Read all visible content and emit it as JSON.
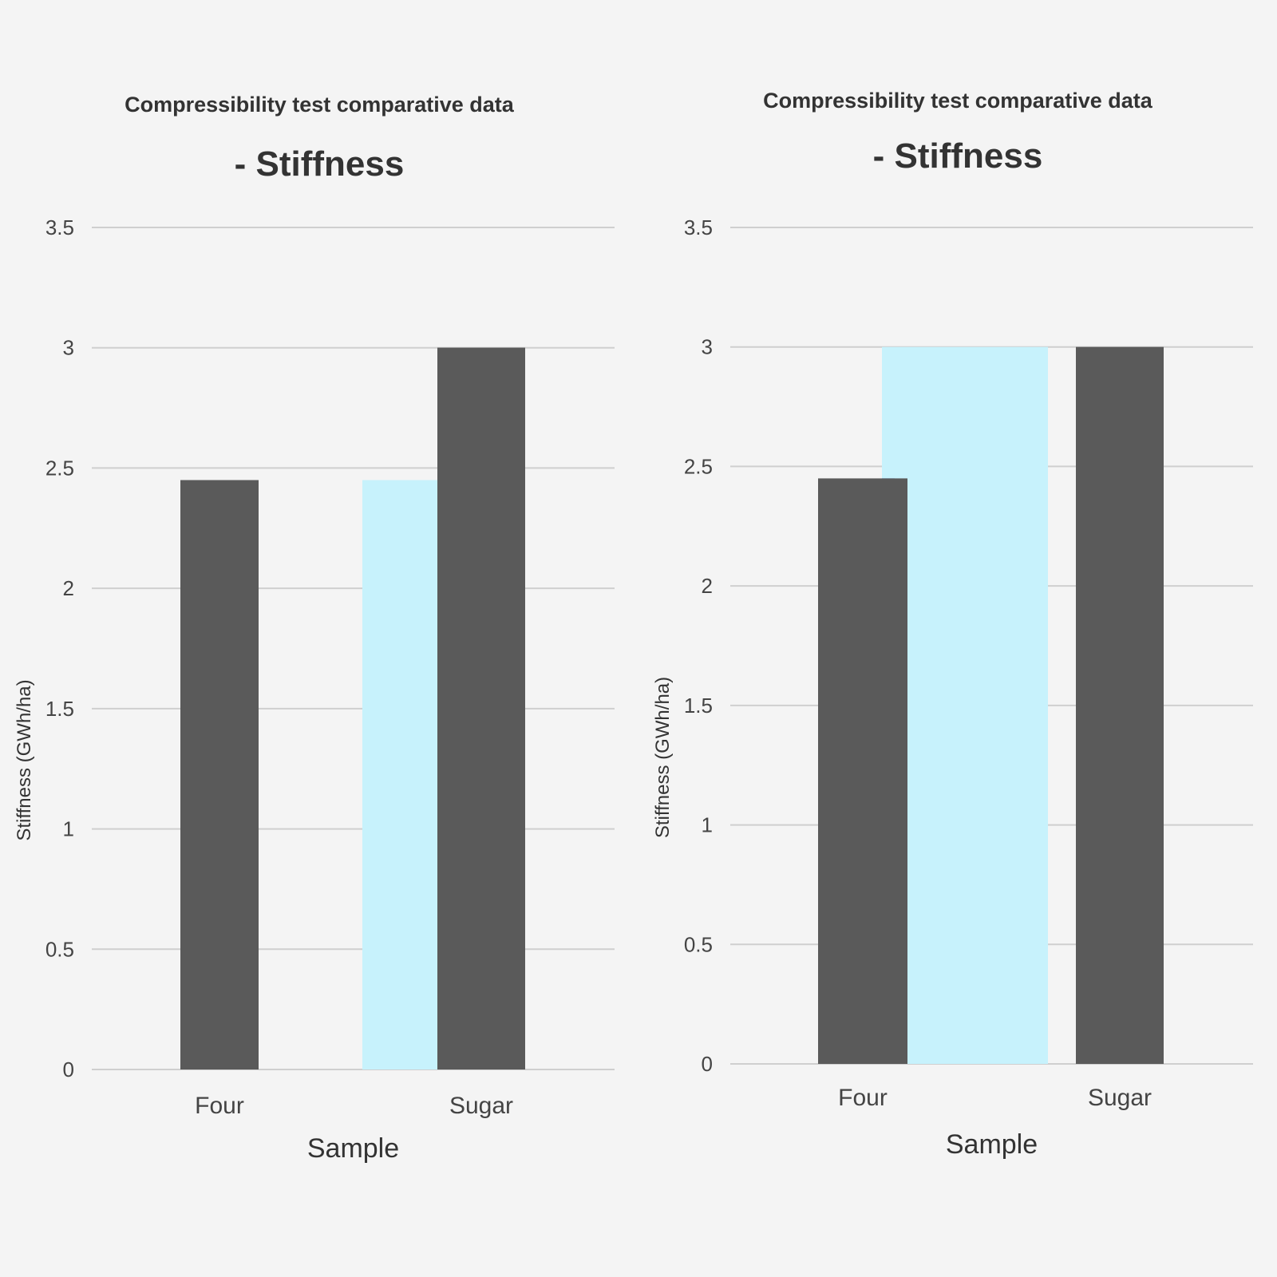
{
  "chart_data": [
    {
      "type": "bar",
      "title": "Compressibility test comparative data - Stiffness",
      "xlabel": "Sample",
      "ylabel": "Stiffness (GWh/ha)",
      "categories": [
        "Four",
        "Sugar"
      ],
      "ylim": [
        0,
        3.5
      ],
      "yticks": [
        "0",
        "0.5",
        "1",
        "1.5",
        "2",
        "2.5",
        "3",
        "3.5"
      ],
      "grid": true,
      "series": [
        {
          "values": [
            2.45,
            3.0
          ],
          "color": "#5a5a5a"
        },
        {
          "values": [
            0,
            2.45
          ],
          "color": "#2e5bc8"
        },
        {
          "values": [
            0,
            2.45
          ],
          "color": "#c7f2fc"
        }
      ]
    },
    {
      "type": "bar",
      "title": "Compressibility test comparative data - Stiffness",
      "xlabel": "Sample",
      "ylabel": "Stiffness (GWh/ha)",
      "categories": [
        "Four",
        "Sugar"
      ],
      "ylim": [
        0,
        3.5
      ],
      "yticks": [
        "0",
        "0.5",
        "1",
        "1.5",
        "2",
        "2.5",
        "3",
        "3.5"
      ],
      "grid": true,
      "series": [
        {
          "values": [
            2.45,
            3.0
          ],
          "color": "#5a5a5a"
        },
        {
          "values": [
            2.45,
            0
          ],
          "color": "#2e5bc8"
        },
        {
          "values": [
            3.0,
            0
          ],
          "color": "#c7f2fc"
        }
      ]
    }
  ]
}
